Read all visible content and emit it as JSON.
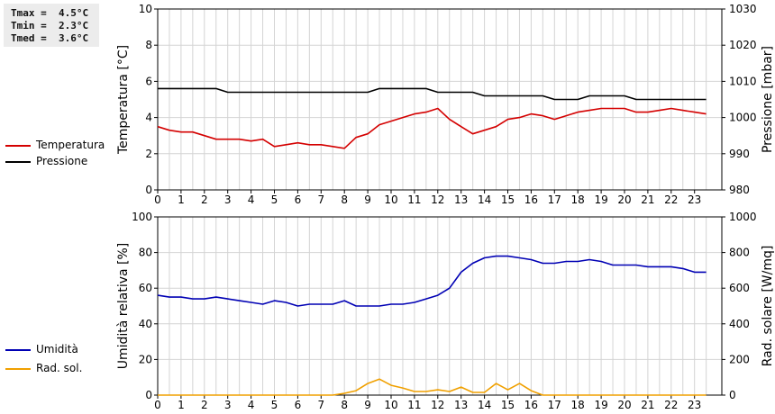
{
  "stats": {
    "tmax": "Tmax =  4.5°C",
    "tmin": "Tmin =  2.3°C",
    "tmed": "Tmed =  3.6°C"
  },
  "legend": {
    "top": [
      {
        "label": "Temperatura",
        "color": "#d40000"
      },
      {
        "label": "Pressione",
        "color": "#000000"
      }
    ],
    "bottom": [
      {
        "label": "Umidità",
        "color": "#0000b4"
      },
      {
        "label": "Rad. sol.",
        "color": "#f0a000"
      }
    ]
  },
  "chart_data": [
    {
      "type": "line",
      "xlim": [
        0,
        24
      ],
      "xticks": [
        "0",
        "1",
        "2",
        "3",
        "4",
        "5",
        "6",
        "7",
        "8",
        "9",
        "10",
        "11",
        "12",
        "13",
        "14",
        "15",
        "16",
        "17",
        "18",
        "19",
        "20",
        "21",
        "22",
        "23"
      ],
      "ylabel": "Temperatura [°C]",
      "ylim": [
        0,
        10
      ],
      "yticks": [
        "0",
        "2",
        "4",
        "6",
        "8",
        "10"
      ],
      "y2label": "Pressione [mbar]",
      "y2lim": [
        980,
        1030
      ],
      "y2ticks": [
        "980",
        "990",
        "1000",
        "1010",
        "1020",
        "1030"
      ],
      "grid": true,
      "legend_position": "left",
      "series": [
        {
          "name": "Temperatura",
          "axis": "left",
          "color": "#d40000",
          "x": [
            0,
            0.5,
            1,
            1.5,
            2,
            2.5,
            3,
            3.5,
            4,
            4.5,
            5,
            5.5,
            6,
            6.5,
            7,
            7.5,
            8,
            8.5,
            9,
            9.5,
            10,
            10.5,
            11,
            11.5,
            12,
            12.5,
            13,
            13.5,
            14,
            14.5,
            15,
            15.5,
            16,
            16.5,
            17,
            17.5,
            18,
            18.5,
            19,
            19.5,
            20,
            20.5,
            21,
            21.5,
            22,
            22.5,
            23,
            23.5
          ],
          "values": [
            3.5,
            3.3,
            3.2,
            3.2,
            3.0,
            2.8,
            2.8,
            2.8,
            2.7,
            2.8,
            2.4,
            2.5,
            2.6,
            2.5,
            2.5,
            2.4,
            2.3,
            2.9,
            3.1,
            3.6,
            3.8,
            4.0,
            4.2,
            4.3,
            4.5,
            3.9,
            3.5,
            3.1,
            3.3,
            3.5,
            3.9,
            4.0,
            4.2,
            4.1,
            3.9,
            4.1,
            4.3,
            4.4,
            4.5,
            4.5,
            4.5,
            4.3,
            4.3,
            4.4,
            4.5,
            4.4,
            4.3,
            4.2
          ]
        },
        {
          "name": "Pressione",
          "axis": "right",
          "color": "#000000",
          "x": [
            0,
            2.5,
            3,
            9,
            9.5,
            11.5,
            12,
            13.5,
            14,
            16.5,
            17,
            18,
            18.5,
            20,
            20.5,
            23.5
          ],
          "values": [
            1008,
            1008,
            1007,
            1007,
            1008,
            1008,
            1007,
            1007,
            1006,
            1006,
            1005,
            1005,
            1006,
            1006,
            1005,
            1005
          ]
        }
      ]
    },
    {
      "type": "line",
      "xlim": [
        0,
        24
      ],
      "xticks": [
        "0",
        "1",
        "2",
        "3",
        "4",
        "5",
        "6",
        "7",
        "8",
        "9",
        "10",
        "11",
        "12",
        "13",
        "14",
        "15",
        "16",
        "17",
        "18",
        "19",
        "20",
        "21",
        "22",
        "23"
      ],
      "ylabel": "Umidità relativa [%]",
      "ylim": [
        0,
        100
      ],
      "yticks": [
        "0",
        "20",
        "40",
        "60",
        "80",
        "100"
      ],
      "y2label": "Rad. solare [W/mq]",
      "y2lim": [
        0,
        1000
      ],
      "y2ticks": [
        "0",
        "200",
        "400",
        "600",
        "800",
        "1000"
      ],
      "grid": true,
      "legend_position": "left",
      "series": [
        {
          "name": "Umidità",
          "axis": "left",
          "color": "#0000b4",
          "x": [
            0,
            0.5,
            1,
            1.5,
            2,
            2.5,
            3,
            3.5,
            4,
            4.5,
            5,
            5.5,
            6,
            6.5,
            7,
            7.5,
            8,
            8.5,
            9,
            9.5,
            10,
            10.5,
            11,
            11.5,
            12,
            12.5,
            13,
            13.5,
            14,
            14.5,
            15,
            15.5,
            16,
            16.5,
            17,
            17.5,
            18,
            18.5,
            19,
            19.5,
            20,
            20.5,
            21,
            21.5,
            22,
            22.5,
            23,
            23.5
          ],
          "values": [
            56,
            55,
            55,
            54,
            54,
            55,
            54,
            53,
            52,
            51,
            53,
            52,
            50,
            51,
            51,
            51,
            53,
            50,
            50,
            50,
            51,
            51,
            52,
            54,
            56,
            60,
            69,
            74,
            77,
            78,
            78,
            77,
            76,
            74,
            74,
            75,
            75,
            76,
            75,
            73,
            73,
            73,
            72,
            72,
            72,
            71,
            69,
            69
          ]
        },
        {
          "name": "Rad. sol.",
          "axis": "right",
          "color": "#f0a000",
          "x": [
            0,
            1,
            2,
            3,
            4,
            5,
            6,
            7,
            7.5,
            8,
            8.5,
            9,
            9.5,
            10,
            10.5,
            11,
            11.5,
            12,
            12.5,
            13,
            13.5,
            14,
            14.5,
            15,
            15.5,
            16,
            16.5,
            17,
            18,
            19,
            20,
            21,
            22,
            23,
            23.5
          ],
          "values": [
            0,
            0,
            0,
            0,
            0,
            0,
            0,
            0,
            0,
            10,
            25,
            65,
            90,
            55,
            40,
            20,
            20,
            30,
            20,
            45,
            15,
            15,
            65,
            30,
            65,
            25,
            0,
            0,
            0,
            0,
            0,
            0,
            0,
            0,
            0
          ]
        }
      ]
    }
  ]
}
